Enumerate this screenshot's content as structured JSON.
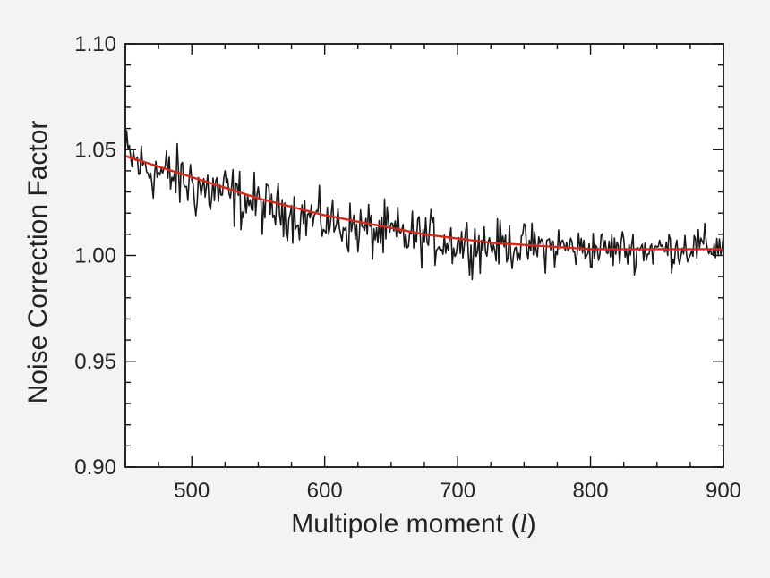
{
  "chart_data": {
    "type": "line",
    "xlabel": "Multipole moment (",
    "xlabel_var": "l",
    "xlabel_close": ")",
    "ylabel": "Noise Correction Factor",
    "xlim": [
      450,
      900
    ],
    "ylim": [
      0.9,
      1.1
    ],
    "x_ticks": [
      500,
      600,
      700,
      800,
      900
    ],
    "x_tick_labels": [
      "500",
      "600",
      "700",
      "800",
      "900"
    ],
    "y_ticks": [
      0.9,
      0.95,
      1.0,
      1.05,
      1.1
    ],
    "y_tick_labels": [
      "0.90",
      "0.95",
      "1.00",
      "1.05",
      "1.10"
    ],
    "grid": false,
    "series": [
      {
        "style": "noisy-measured",
        "color": "#1a1a1a",
        "x": [
          450,
          460,
          470,
          480,
          490,
          500,
          510,
          520,
          530,
          540,
          550,
          560,
          570,
          580,
          590,
          600,
          610,
          620,
          630,
          640,
          650,
          660,
          670,
          680,
          690,
          700,
          710,
          720,
          730,
          740,
          750,
          760,
          770,
          780,
          790,
          800,
          810,
          820,
          830,
          840,
          850,
          860,
          870,
          880,
          890,
          900
        ],
        "y": [
          1.048,
          1.043,
          1.04,
          1.038,
          1.036,
          1.034,
          1.031,
          1.03,
          1.028,
          1.026,
          1.024,
          1.022,
          1.021,
          1.019,
          1.018,
          1.016,
          1.015,
          1.013,
          1.012,
          1.011,
          1.01,
          1.009,
          1.009,
          1.008,
          1.007,
          1.006,
          1.006,
          1.005,
          1.005,
          1.005,
          1.004,
          1.004,
          1.004,
          1.004,
          1.003,
          1.003,
          1.003,
          1.003,
          1.003,
          1.003,
          1.003,
          1.003,
          1.004,
          1.004,
          1.004,
          1.005
        ],
        "noise_amplitude": [
          0.01,
          0.01,
          0.01,
          0.011,
          0.011,
          0.012,
          0.012,
          0.011,
          0.011,
          0.01,
          0.01,
          0.009,
          0.009,
          0.009,
          0.009,
          0.009,
          0.009,
          0.009,
          0.01,
          0.01,
          0.01,
          0.009,
          0.009,
          0.009,
          0.009,
          0.009,
          0.009,
          0.009,
          0.008,
          0.008,
          0.008,
          0.008,
          0.008,
          0.008,
          0.007,
          0.007,
          0.007,
          0.007,
          0.007,
          0.007,
          0.007,
          0.007,
          0.007,
          0.007,
          0.007,
          0.007
        ]
      },
      {
        "style": "fit",
        "color": "#d42a1c",
        "x": [
          450,
          475,
          500,
          525,
          550,
          575,
          600,
          625,
          650,
          675,
          700,
          725,
          750,
          775,
          800,
          825,
          850,
          875,
          900
        ],
        "y": [
          1.047,
          1.042,
          1.037,
          1.032,
          1.027,
          1.023,
          1.019,
          1.016,
          1.013,
          1.01,
          1.008,
          1.006,
          1.005,
          1.004,
          1.003,
          1.003,
          1.003,
          1.003,
          1.003
        ]
      }
    ]
  }
}
